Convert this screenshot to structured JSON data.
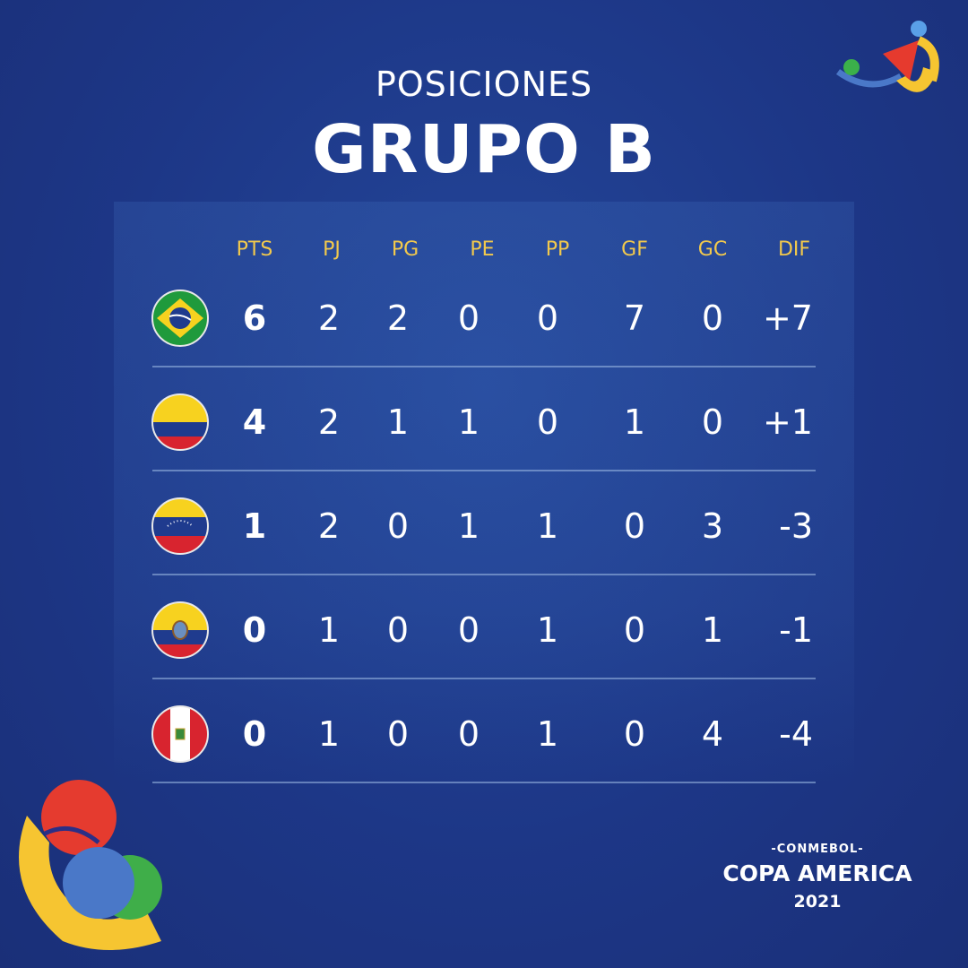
{
  "header": {
    "subtitle": "POSICIONES",
    "title": "GRUPO B"
  },
  "columns": [
    "PTS",
    "PJ",
    "PG",
    "PE",
    "PP",
    "GF",
    "GC",
    "DIF"
  ],
  "rows": [
    {
      "team_flag": "brazil-flag-icon",
      "values": [
        "6",
        "2",
        "2",
        "0",
        "0",
        "7",
        "0",
        "+7"
      ]
    },
    {
      "team_flag": "colombia-flag-icon",
      "values": [
        "4",
        "2",
        "1",
        "1",
        "0",
        "1",
        "0",
        "+1"
      ]
    },
    {
      "team_flag": "venezuela-flag-icon",
      "values": [
        "1",
        "2",
        "0",
        "1",
        "1",
        "0",
        "3",
        "-3"
      ]
    },
    {
      "team_flag": "ecuador-flag-icon",
      "values": [
        "0",
        "1",
        "0",
        "0",
        "1",
        "0",
        "1",
        "-1"
      ]
    },
    {
      "team_flag": "peru-flag-icon",
      "values": [
        "0",
        "1",
        "0",
        "0",
        "1",
        "0",
        "4",
        "-4"
      ]
    }
  ],
  "brand": {
    "conmebol": "-CONMEBOL-",
    "name": "COPA AMERICA",
    "year": "2021"
  },
  "colors": {
    "background": "#1d3787",
    "header_text": "#f2c94c",
    "text": "#ffffff"
  }
}
